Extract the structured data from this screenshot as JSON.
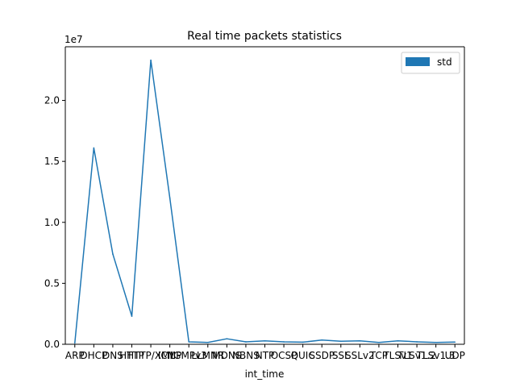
{
  "chart_data": {
    "type": "line",
    "title": "Real time packets statistics",
    "xlabel": "int_time",
    "ylabel": "",
    "exponent_label": "1e7",
    "categories": [
      "ARP",
      "DHCP",
      "DNS",
      "HTTP",
      "HTTP/XML",
      "ICMP",
      "IGMPv3",
      "LLMNR",
      "MDNS",
      "NBNS",
      "NTP",
      "OCSP",
      "QUIC",
      "SSDP",
      "SSL",
      "SSLv2",
      "TCP",
      "TLSv1",
      "TLSv1.2",
      "TLSv1.3",
      "UDP"
    ],
    "series": [
      {
        "name": "std",
        "color": "#1f77b4",
        "values": [
          100000,
          16100000,
          7400000,
          2300000,
          23300000,
          12000000,
          200000,
          150000,
          450000,
          200000,
          280000,
          200000,
          170000,
          350000,
          250000,
          280000,
          150000,
          280000,
          200000,
          150000,
          180000
        ]
      }
    ],
    "ylim": [
      0,
      24400000
    ],
    "yticks": [
      {
        "value": 0,
        "label": "0.0"
      },
      {
        "value": 5000000,
        "label": "0.5"
      },
      {
        "value": 10000000,
        "label": "1.0"
      },
      {
        "value": 15000000,
        "label": "1.5"
      },
      {
        "value": 20000000,
        "label": "2.0"
      }
    ],
    "grid": false,
    "legend": {
      "position": "top-right",
      "label": "std"
    }
  }
}
